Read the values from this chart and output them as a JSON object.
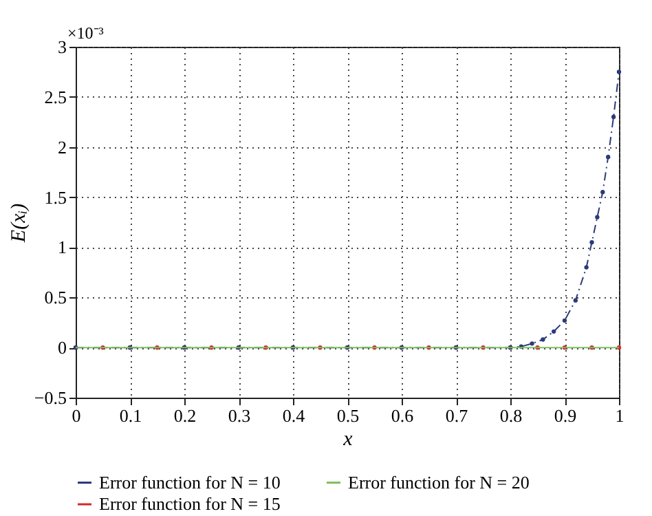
{
  "chart_data": {
    "type": "line",
    "xlabel": "x",
    "ylabel": "E(xᵢ)",
    "annotations": [
      "×10⁻³"
    ],
    "xlim": [
      0,
      1
    ],
    "xticks": [
      0,
      0.1,
      0.2,
      0.3,
      0.4,
      0.5,
      0.6,
      0.7,
      0.8,
      0.9,
      1
    ],
    "ylim": [
      -0.5,
      3
    ],
    "yticks": [
      -0.5,
      0,
      0.5,
      1,
      1.5,
      2,
      2.5,
      3
    ],
    "grid": true,
    "legend": "bottom",
    "series": [
      {
        "name": "Error function for N = 10",
        "color": "#2b3a7a",
        "marker": "circle",
        "line_style": "dashed",
        "x": [
          0,
          0.1,
          0.2,
          0.3,
          0.4,
          0.5,
          0.6,
          0.7,
          0.8,
          0.82,
          0.84,
          0.86,
          0.88,
          0.9,
          0.92,
          0.94,
          0.95,
          0.96,
          0.97,
          0.98,
          0.99,
          1
        ],
        "values": [
          0,
          0,
          0,
          0,
          0,
          0,
          0,
          0,
          0,
          0.01,
          0.04,
          0.08,
          0.16,
          0.27,
          0.47,
          0.8,
          1.05,
          1.3,
          1.55,
          1.9,
          2.3,
          2.75
        ]
      },
      {
        "name": "Error function for N = 15",
        "type": "scatter",
        "color": "#d62728",
        "marker": "circle",
        "x": [
          0,
          0.05,
          0.1,
          0.15,
          0.2,
          0.25,
          0.3,
          0.35,
          0.4,
          0.45,
          0.5,
          0.55,
          0.6,
          0.65,
          0.7,
          0.75,
          0.8,
          0.85,
          0.9,
          0.95,
          1
        ],
        "values": [
          0,
          0,
          0,
          0,
          0,
          0,
          0,
          0,
          0,
          0,
          0,
          0,
          0,
          0,
          0,
          0,
          0,
          0,
          0,
          0,
          0
        ]
      },
      {
        "name": "Error function for N = 20",
        "color": "#7fbf5f",
        "marker": "none",
        "line_style": "solid",
        "x": [
          0,
          0.5,
          1
        ],
        "values": [
          0,
          0,
          0
        ]
      }
    ]
  }
}
